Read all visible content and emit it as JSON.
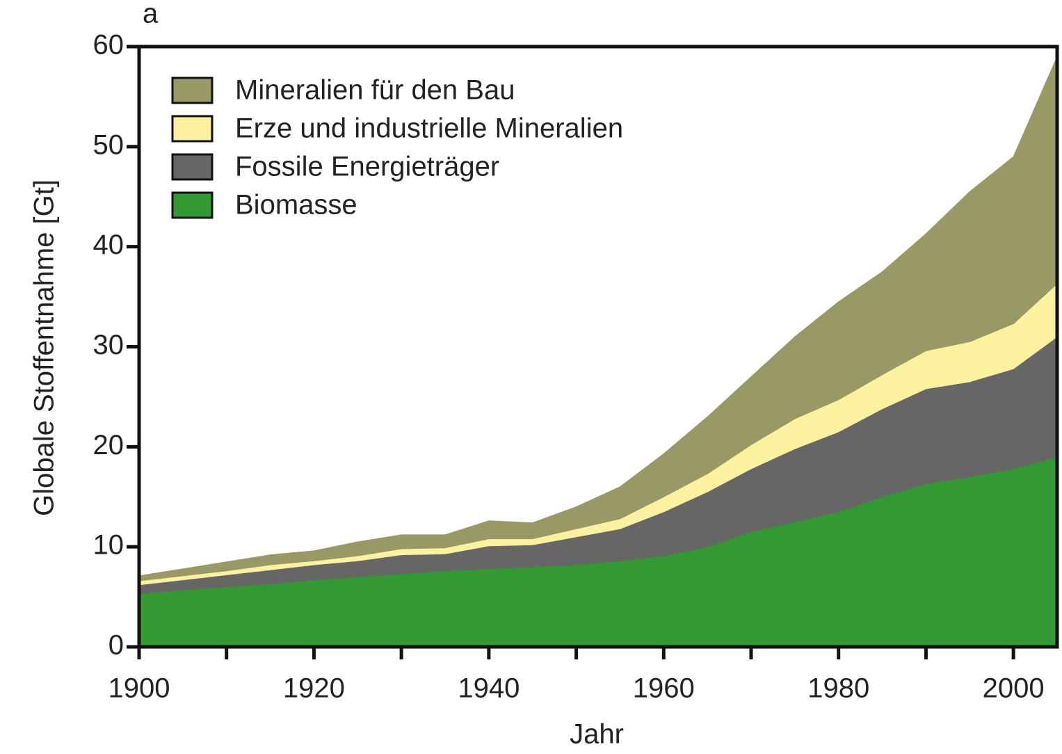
{
  "chart_data": {
    "type": "stacked_area",
    "panel_label": "a",
    "x_label": "Jahr",
    "y_label": "Globale Stoffentnahme [Gt]",
    "x": [
      1900,
      1905,
      1910,
      1915,
      1920,
      1925,
      1930,
      1935,
      1940,
      1945,
      1950,
      1955,
      1960,
      1965,
      1970,
      1975,
      1980,
      1985,
      1990,
      1995,
      2000,
      2005
    ],
    "series": [
      {
        "name": "Biomasse",
        "color": "#339933",
        "values": [
          5.3,
          5.7,
          6.0,
          6.3,
          6.7,
          7.0,
          7.3,
          7.6,
          7.8,
          8.0,
          8.2,
          8.6,
          9.1,
          10.0,
          11.5,
          12.5,
          13.5,
          15.0,
          16.3,
          17.0,
          17.8,
          19.0
        ]
      },
      {
        "name": "Fossile Energieträger",
        "color": "#666666",
        "values": [
          0.9,
          1.0,
          1.2,
          1.4,
          1.5,
          1.6,
          1.9,
          1.7,
          2.3,
          2.2,
          2.8,
          3.2,
          4.4,
          5.5,
          6.3,
          7.3,
          8.0,
          8.8,
          9.5,
          9.5,
          10.0,
          12.0
        ]
      },
      {
        "name": "Erze und industrielle Mineralien",
        "color": "#fbf19f",
        "values": [
          0.4,
          0.4,
          0.4,
          0.5,
          0.4,
          0.5,
          0.6,
          0.6,
          0.7,
          0.6,
          0.8,
          1.0,
          1.5,
          1.8,
          2.4,
          3.0,
          3.2,
          3.4,
          3.8,
          4.0,
          4.5,
          5.3
        ]
      },
      {
        "name": "Mineralien für den Bau",
        "color": "#999966",
        "values": [
          0.5,
          0.7,
          0.9,
          1.0,
          1.0,
          1.4,
          1.4,
          1.3,
          1.8,
          1.6,
          2.2,
          3.2,
          4.3,
          5.7,
          6.8,
          8.2,
          9.8,
          10.3,
          11.7,
          15.0,
          16.7,
          22.7
        ]
      }
    ],
    "xlim": [
      1900,
      2005
    ],
    "ylim": [
      0,
      60
    ],
    "xticks": [
      1900,
      1920,
      1940,
      1960,
      1980,
      2000
    ],
    "xminor_ticks": [
      1910,
      1930,
      1950,
      1970,
      1990
    ],
    "yticks": [
      0,
      10,
      20,
      30,
      40,
      50,
      60
    ],
    "legend": "upper left",
    "grid": false
  }
}
